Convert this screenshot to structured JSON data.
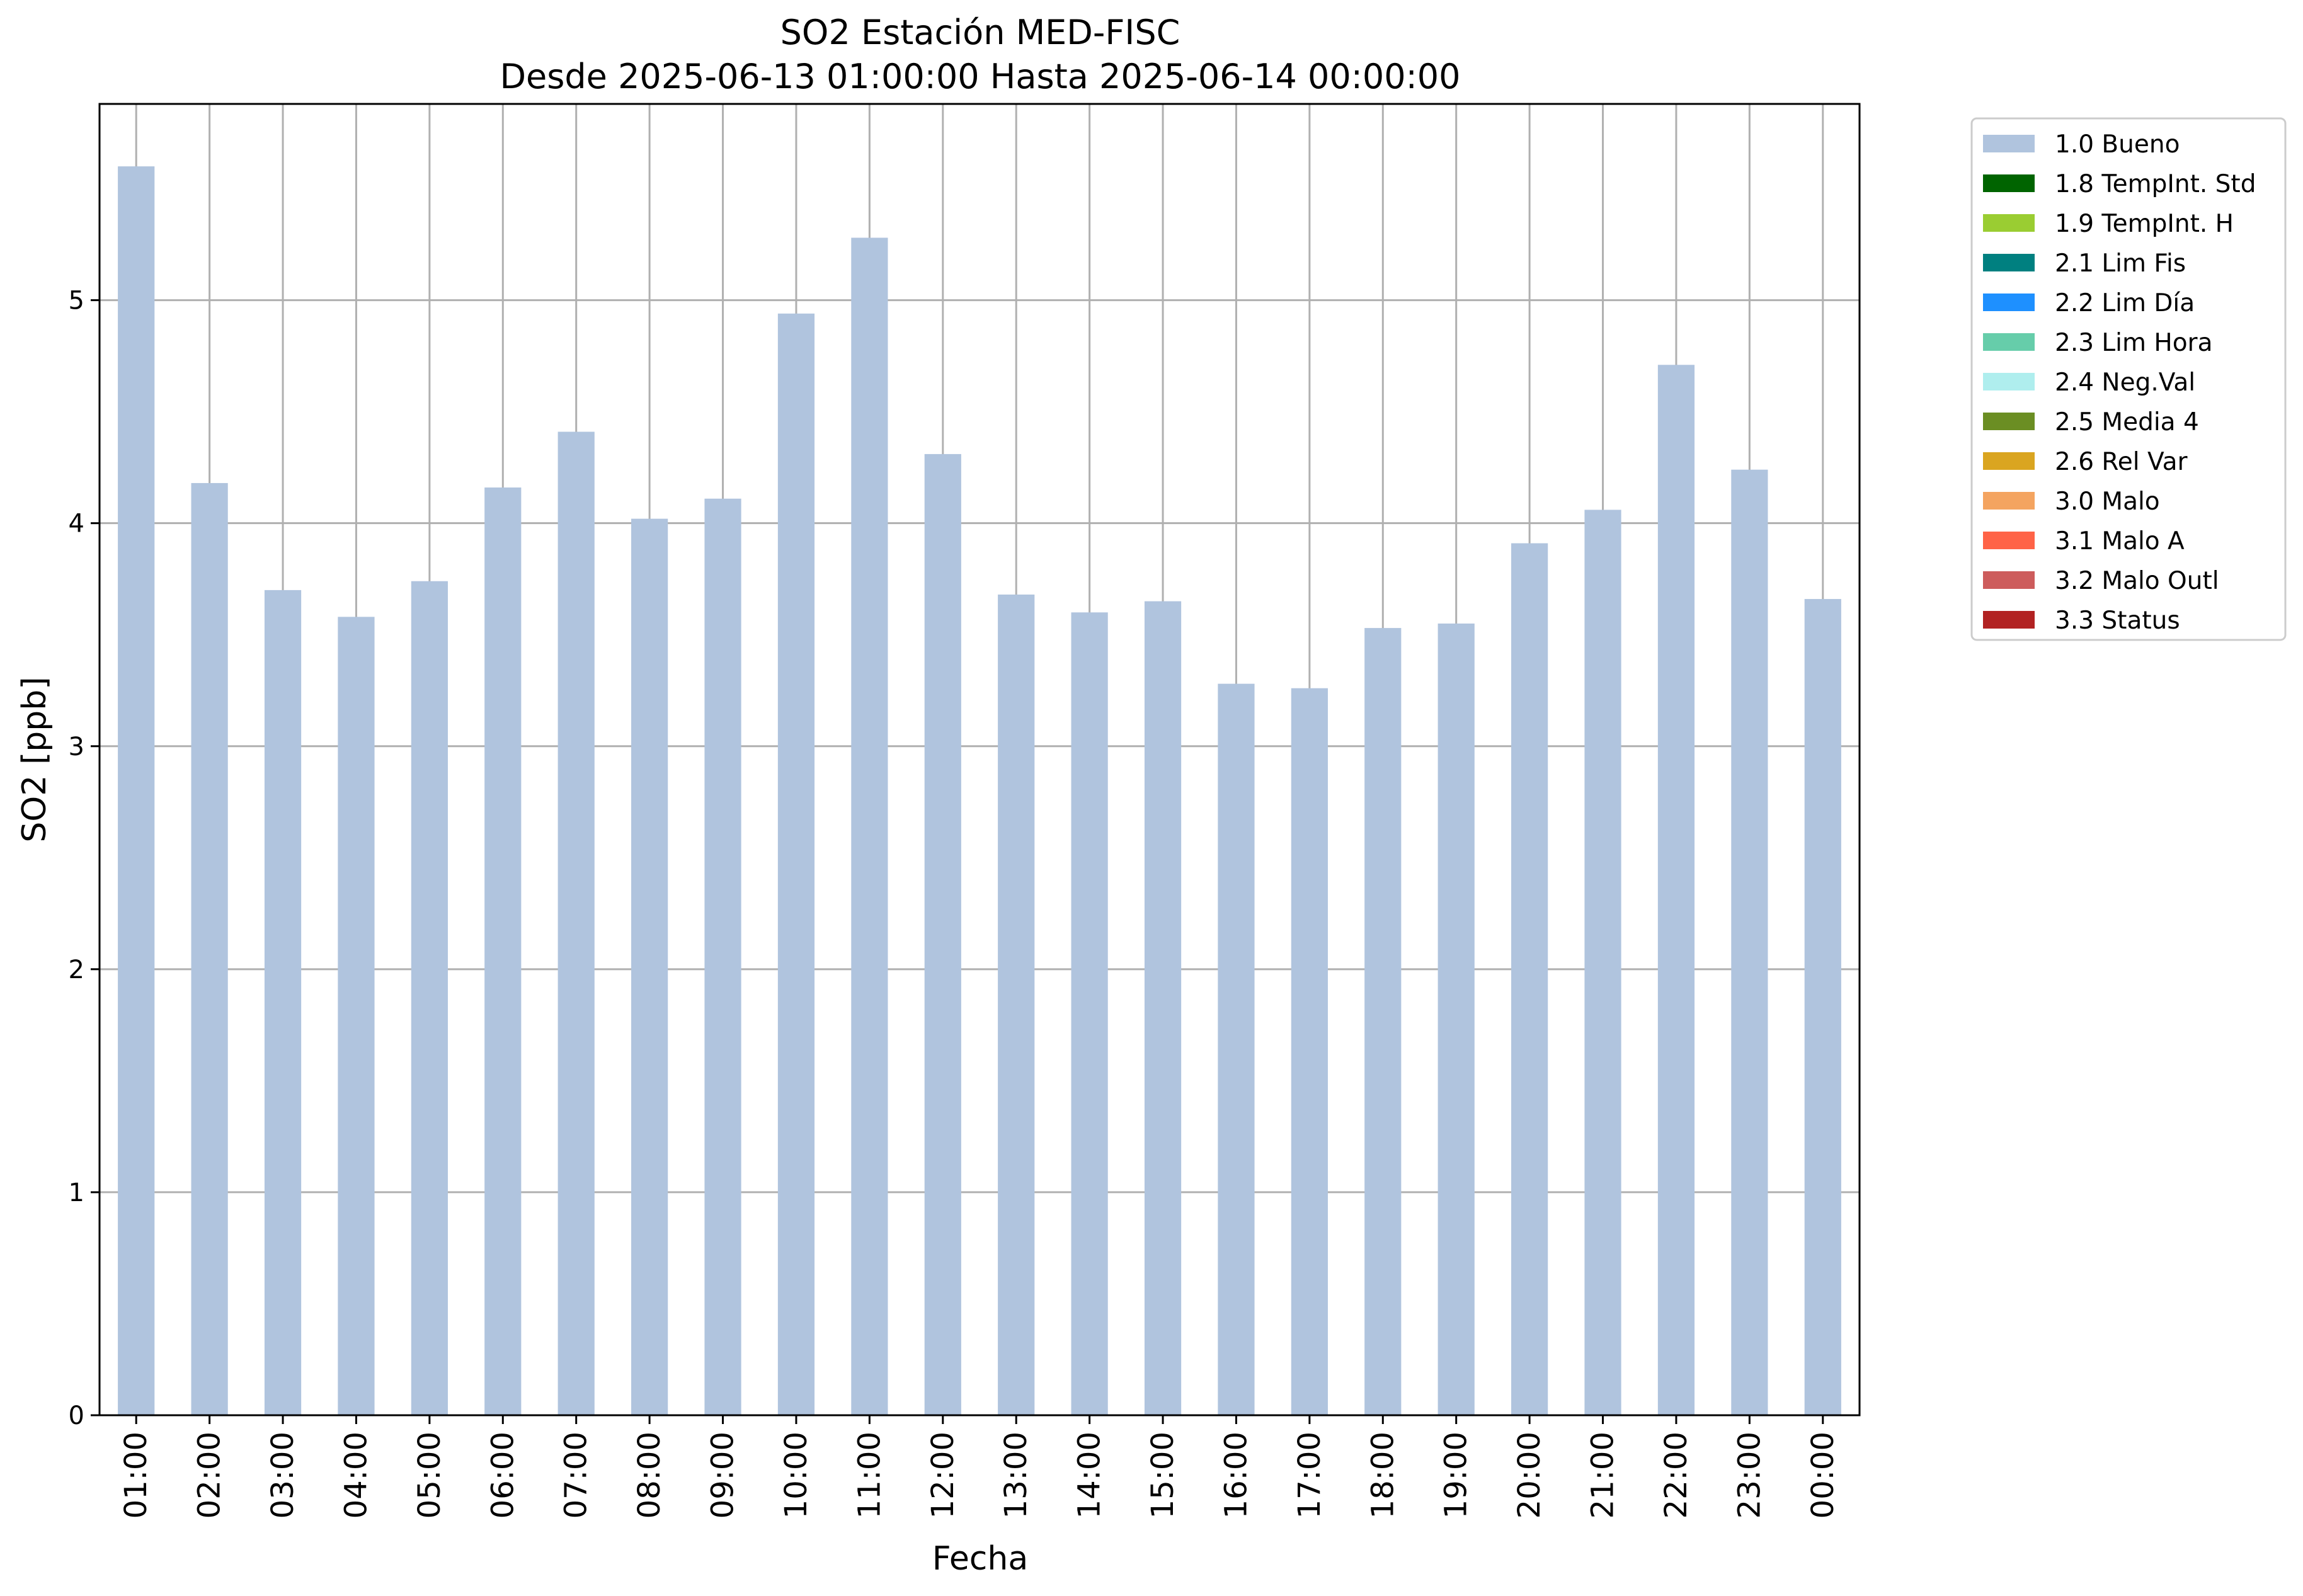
{
  "chart_data": {
    "type": "bar",
    "title": "SO2 Estación MED-FISC",
    "subtitle": "Desde 2025-06-13 01:00:00 Hasta 2025-06-14 00:00:00",
    "xlabel": "Fecha",
    "ylabel": "SO2 [ppb]",
    "ylim": [
      0,
      5.88
    ],
    "yticks": [
      "0",
      "1",
      "2",
      "3",
      "4",
      "5"
    ],
    "grid": true,
    "legend_position": "outside-top-right",
    "categories": [
      "01:00",
      "02:00",
      "03:00",
      "04:00",
      "05:00",
      "06:00",
      "07:00",
      "08:00",
      "09:00",
      "10:00",
      "11:00",
      "12:00",
      "13:00",
      "14:00",
      "15:00",
      "16:00",
      "17:00",
      "18:00",
      "19:00",
      "20:00",
      "21:00",
      "22:00",
      "23:00",
      "00:00"
    ],
    "series": [
      {
        "name": "1.0 Bueno",
        "color": "#b0c4de",
        "values": [
          5.6,
          4.18,
          3.7,
          3.58,
          3.74,
          4.16,
          4.41,
          4.02,
          4.11,
          4.94,
          5.28,
          4.31,
          3.68,
          3.6,
          3.65,
          3.28,
          3.26,
          3.53,
          3.55,
          3.91,
          4.06,
          4.71,
          4.24,
          3.66
        ]
      }
    ],
    "legend": [
      {
        "label": "1.0 Bueno",
        "color": "#b0c4de"
      },
      {
        "label": "1.8 TempInt. Std",
        "color": "#006400"
      },
      {
        "label": "1.9 TempInt. H",
        "color": "#9acd32"
      },
      {
        "label": "2.1 Lim Fis",
        "color": "#008080"
      },
      {
        "label": "2.2 Lim Día",
        "color": "#1e90ff"
      },
      {
        "label": "2.3 Lim Hora",
        "color": "#66cdaa"
      },
      {
        "label": "2.4 Neg.Val",
        "color": "#afeeee"
      },
      {
        "label": "2.5 Media 4",
        "color": "#6b8e23"
      },
      {
        "label": "2.6 Rel Var",
        "color": "#daa520"
      },
      {
        "label": "3.0 Malo",
        "color": "#f4a460"
      },
      {
        "label": "3.1 Malo A",
        "color": "#ff6347"
      },
      {
        "label": "3.2 Malo Outl",
        "color": "#cd5c5c"
      },
      {
        "label": "3.3 Status",
        "color": "#b22222"
      }
    ]
  }
}
